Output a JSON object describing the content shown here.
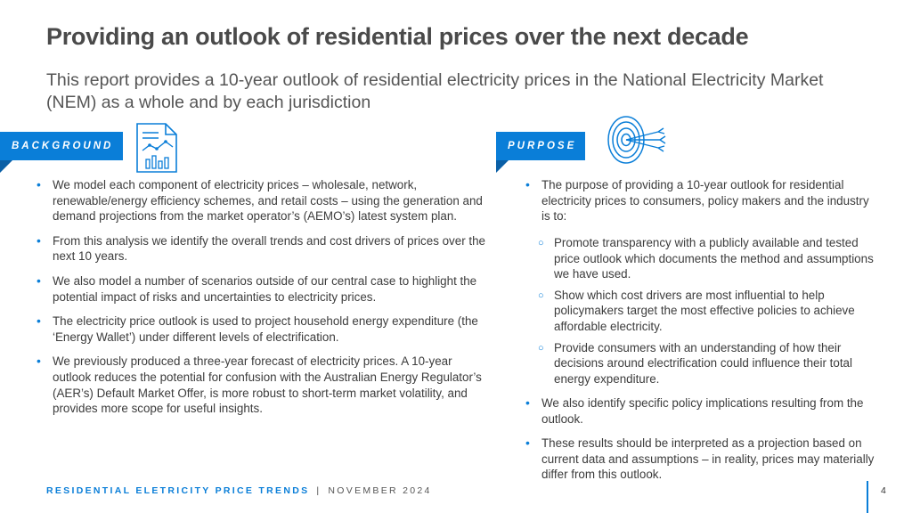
{
  "header": {
    "title": "Providing an outlook of residential prices over the next decade",
    "subtitle": "This report provides a 10-year outlook of residential electricity prices in the National Electricity Market (NEM) as a whole and by each jurisdiction"
  },
  "background": {
    "tag": "BACKGROUND",
    "icon": "document-chart-icon",
    "bullets": [
      "We model each component of electricity prices – wholesale, network, renewable/energy efficiency schemes, and retail costs – using the generation and demand projections from the market operator’s (AEMO’s) latest system plan.",
      "From this analysis we identify the overall trends and cost drivers of prices over the next 10 years.",
      "We also model a number of scenarios outside of our central case to highlight the potential impact of risks and uncertainties to electricity prices.",
      "The electricity price outlook is used to project household energy expenditure (the ‘Energy Wallet’) under different levels of electrification.",
      "We previously produced a three-year forecast of electricity prices. A 10-year outlook reduces the potential for confusion with the Australian Energy Regulator’s (AER’s) Default Market Offer, is more robust to short-term market volatility, and provides more scope for useful insights."
    ]
  },
  "purpose": {
    "tag": "PURPOSE",
    "icon": "target-icon",
    "intro": "The purpose of providing a 10-year outlook for residential electricity prices to consumers, policy makers and the industry is to:",
    "sub_bullets": [
      "Promote transparency with a publicly available and tested price outlook which documents the method and assumptions we have used.",
      "Show which cost drivers are most influential to help policymakers target the most effective policies to achieve affordable electricity.",
      "Provide consumers with an understanding of how their decisions around electrification could influence their total energy expenditure."
    ],
    "tail_bullets": [
      "We also identify specific policy implications resulting from the outlook.",
      "These results should be interpreted as a projection based on current data and assumptions – in reality, prices may materially differ from this outlook."
    ]
  },
  "footer": {
    "brand": "RESIDENTIAL ELETRICITY PRICE TRENDS",
    "separator": "|",
    "date": "NOVEMBER 2024",
    "page": "4"
  },
  "colors": {
    "accent": "#0a7ed8",
    "accent_dark": "#0a5fa6",
    "text": "#3c3c3c"
  }
}
